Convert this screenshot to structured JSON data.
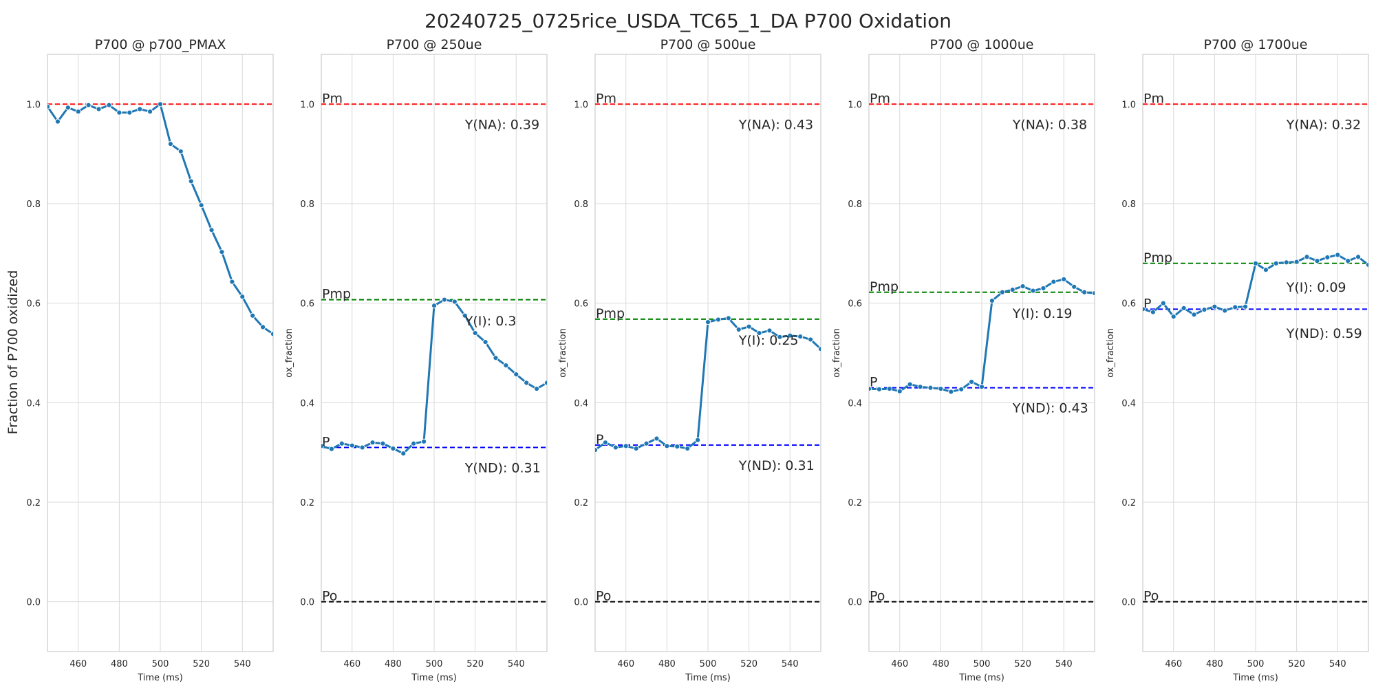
{
  "suptitle": "20240725_0725rice_USDA_TC65_1_DA P700 Oxidation",
  "colors": {
    "series": "#1f77b4",
    "pm": "#ff0000",
    "pmp": "#008000",
    "p": "#0000ff",
    "po": "#000000",
    "grid": "#d9d9d9",
    "text": "#262626"
  },
  "chart_data": [
    {
      "type": "line",
      "title": "P700 @ p700_PMAX",
      "xlabel": "Time (ms)",
      "ylabel": "Fraction of P700 oxidized",
      "xlim": [
        445,
        555
      ],
      "ylim": [
        -0.1,
        1.1
      ],
      "xticks": [
        460,
        480,
        500,
        520,
        540
      ],
      "yticks": [
        0.0,
        0.2,
        0.4,
        0.6,
        0.8,
        1.0
      ],
      "grid": true,
      "x": [
        445,
        450,
        455,
        460,
        465,
        470,
        475,
        480,
        485,
        490,
        495,
        500,
        505,
        510,
        515,
        520,
        525,
        530,
        535,
        540,
        545,
        550,
        555
      ],
      "y": [
        0.995,
        0.965,
        0.993,
        0.985,
        0.998,
        0.99,
        0.998,
        0.983,
        0.983,
        0.99,
        0.985,
        1.0,
        0.92,
        0.905,
        0.845,
        0.797,
        0.747,
        0.703,
        0.643,
        0.613,
        0.575,
        0.552,
        0.538
      ],
      "hlines": [
        {
          "label": "",
          "y": 1.0,
          "color": "#ff0000"
        }
      ],
      "annotations": []
    },
    {
      "type": "line",
      "title": "P700 @ 250ue",
      "xlabel": "Time (ms)",
      "ylabel": "ox_fraction",
      "xlim": [
        445,
        555
      ],
      "ylim": [
        -0.1,
        1.1
      ],
      "xticks": [
        460,
        480,
        500,
        520,
        540
      ],
      "yticks": [
        0.0,
        0.2,
        0.4,
        0.6,
        0.8,
        1.0
      ],
      "grid": true,
      "x": [
        445,
        450,
        455,
        460,
        465,
        470,
        475,
        480,
        485,
        490,
        495,
        500,
        505,
        510,
        515,
        520,
        525,
        530,
        535,
        540,
        545,
        550,
        555
      ],
      "y": [
        0.313,
        0.307,
        0.318,
        0.314,
        0.31,
        0.32,
        0.318,
        0.308,
        0.298,
        0.318,
        0.322,
        0.595,
        0.607,
        0.603,
        0.575,
        0.54,
        0.522,
        0.49,
        0.475,
        0.457,
        0.44,
        0.428,
        0.44
      ],
      "hlines": [
        {
          "label": "Pm",
          "y": 1.0,
          "color": "#ff0000"
        },
        {
          "label": "Pmp",
          "y": 0.607,
          "color": "#008000"
        },
        {
          "label": "P",
          "y": 0.31,
          "color": "#0000ff"
        },
        {
          "label": "Po",
          "y": 0.0,
          "color": "#000000"
        }
      ],
      "annotations": [
        {
          "text": "Y(NA): 0.39",
          "x": 515,
          "y": 0.96
        },
        {
          "text": "Y(I): 0.3",
          "x": 515,
          "y": 0.565
        },
        {
          "text": "Y(ND): 0.31",
          "x": 515,
          "y": 0.27
        }
      ]
    },
    {
      "type": "line",
      "title": "P700 @ 500ue",
      "xlabel": "Time (ms)",
      "ylabel": "ox_fraction",
      "xlim": [
        445,
        555
      ],
      "ylim": [
        -0.1,
        1.1
      ],
      "xticks": [
        460,
        480,
        500,
        520,
        540
      ],
      "yticks": [
        0.0,
        0.2,
        0.4,
        0.6,
        0.8,
        1.0
      ],
      "grid": true,
      "x": [
        445,
        450,
        455,
        460,
        465,
        470,
        475,
        480,
        485,
        490,
        495,
        500,
        505,
        510,
        515,
        520,
        525,
        530,
        535,
        540,
        545,
        550,
        555
      ],
      "y": [
        0.305,
        0.32,
        0.31,
        0.313,
        0.308,
        0.318,
        0.328,
        0.313,
        0.312,
        0.308,
        0.325,
        0.562,
        0.567,
        0.57,
        0.547,
        0.553,
        0.54,
        0.545,
        0.532,
        0.535,
        0.533,
        0.527,
        0.508
      ],
      "hlines": [
        {
          "label": "Pm",
          "y": 1.0,
          "color": "#ff0000"
        },
        {
          "label": "Pmp",
          "y": 0.568,
          "color": "#008000"
        },
        {
          "label": "P",
          "y": 0.315,
          "color": "#0000ff"
        },
        {
          "label": "Po",
          "y": 0.0,
          "color": "#000000"
        }
      ],
      "annotations": [
        {
          "text": "Y(NA): 0.43",
          "x": 515,
          "y": 0.96
        },
        {
          "text": "Y(I): 0.25",
          "x": 515,
          "y": 0.526
        },
        {
          "text": "Y(ND): 0.31",
          "x": 515,
          "y": 0.275
        }
      ]
    },
    {
      "type": "line",
      "title": "P700 @ 1000ue",
      "xlabel": "Time (ms)",
      "ylabel": "ox_fraction",
      "xlim": [
        445,
        555
      ],
      "ylim": [
        -0.1,
        1.1
      ],
      "xticks": [
        460,
        480,
        500,
        520,
        540
      ],
      "yticks": [
        0.0,
        0.2,
        0.4,
        0.6,
        0.8,
        1.0
      ],
      "grid": true,
      "x": [
        445,
        450,
        455,
        460,
        465,
        470,
        475,
        480,
        485,
        490,
        495,
        500,
        505,
        510,
        515,
        520,
        525,
        530,
        535,
        540,
        545,
        550,
        555
      ],
      "y": [
        0.428,
        0.427,
        0.428,
        0.423,
        0.437,
        0.432,
        0.43,
        0.428,
        0.422,
        0.427,
        0.442,
        0.432,
        0.605,
        0.622,
        0.627,
        0.634,
        0.625,
        0.63,
        0.643,
        0.648,
        0.633,
        0.622,
        0.62
      ],
      "hlines": [
        {
          "label": "Pm",
          "y": 1.0,
          "color": "#ff0000"
        },
        {
          "label": "Pmp",
          "y": 0.622,
          "color": "#008000"
        },
        {
          "label": "P",
          "y": 0.43,
          "color": "#0000ff"
        },
        {
          "label": "Po",
          "y": 0.0,
          "color": "#000000"
        }
      ],
      "annotations": [
        {
          "text": "Y(NA): 0.38",
          "x": 515,
          "y": 0.96
        },
        {
          "text": "Y(I): 0.19",
          "x": 515,
          "y": 0.58
        },
        {
          "text": "Y(ND): 0.43",
          "x": 515,
          "y": 0.39
        }
      ]
    },
    {
      "type": "line",
      "title": "P700 @ 1700ue",
      "xlabel": "Time (ms)",
      "ylabel": "ox_fraction",
      "xlim": [
        445,
        555
      ],
      "ylim": [
        -0.1,
        1.1
      ],
      "xticks": [
        460,
        480,
        500,
        520,
        540
      ],
      "yticks": [
        0.0,
        0.2,
        0.4,
        0.6,
        0.8,
        1.0
      ],
      "grid": true,
      "x": [
        445,
        450,
        455,
        460,
        465,
        470,
        475,
        480,
        485,
        490,
        495,
        500,
        505,
        510,
        515,
        520,
        525,
        530,
        535,
        540,
        545,
        550,
        555
      ],
      "y": [
        0.588,
        0.582,
        0.6,
        0.573,
        0.59,
        0.577,
        0.587,
        0.593,
        0.585,
        0.592,
        0.593,
        0.68,
        0.667,
        0.68,
        0.682,
        0.683,
        0.693,
        0.685,
        0.692,
        0.697,
        0.685,
        0.693,
        0.677
      ],
      "hlines": [
        {
          "label": "Pm",
          "y": 1.0,
          "color": "#ff0000"
        },
        {
          "label": "Pmp",
          "y": 0.68,
          "color": "#008000"
        },
        {
          "label": "P",
          "y": 0.588,
          "color": "#0000ff"
        },
        {
          "label": "Po",
          "y": 0.0,
          "color": "#000000"
        }
      ],
      "annotations": [
        {
          "text": "Y(NA): 0.32",
          "x": 515,
          "y": 0.96
        },
        {
          "text": "Y(I): 0.09",
          "x": 515,
          "y": 0.633
        },
        {
          "text": "Y(ND): 0.59",
          "x": 515,
          "y": 0.54
        }
      ]
    }
  ]
}
